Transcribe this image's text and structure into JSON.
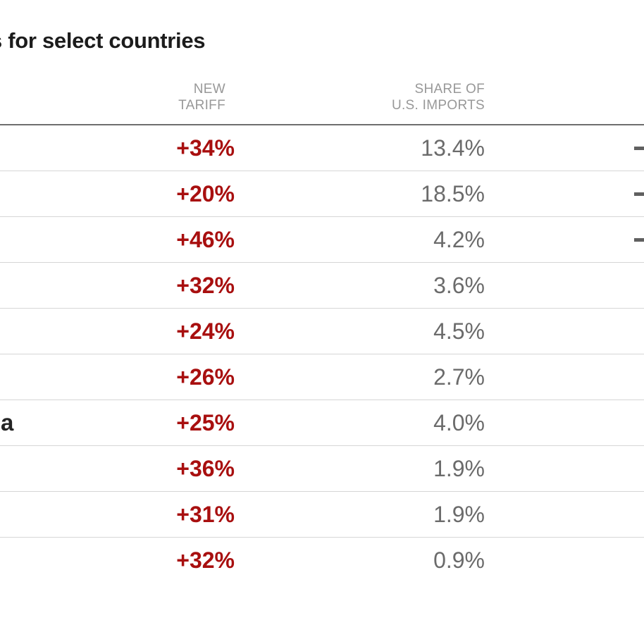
{
  "title": {
    "visible_text": "s for select countries"
  },
  "table": {
    "headers": {
      "tariff_line1": "NEW",
      "tariff_line2": "TARIFF",
      "share_line1": "SHARE OF",
      "share_line2": "U.S. IMPORTS"
    },
    "rows": [
      {
        "country_visible": "",
        "tariff": "+34%",
        "share": "13.4%",
        "trailing_dash": true
      },
      {
        "country_visible": "",
        "tariff": "+20%",
        "share": "18.5%",
        "trailing_dash": true
      },
      {
        "country_visible": "",
        "tariff": "+46%",
        "share": "4.2%",
        "trailing_dash": true
      },
      {
        "country_visible": "",
        "tariff": "+32%",
        "share": "3.6%",
        "trailing_dash": false
      },
      {
        "country_visible": "",
        "tariff": "+24%",
        "share": "4.5%",
        "trailing_dash": false
      },
      {
        "country_visible": "",
        "tariff": "+26%",
        "share": "2.7%",
        "trailing_dash": false
      },
      {
        "country_visible": "a",
        "tariff": "+25%",
        "share": "4.0%",
        "trailing_dash": false
      },
      {
        "country_visible": "",
        "tariff": "+36%",
        "share": "1.9%",
        "trailing_dash": false
      },
      {
        "country_visible": "",
        "tariff": "+31%",
        "share": "1.9%",
        "trailing_dash": false
      },
      {
        "country_visible": "",
        "tariff": "+32%",
        "share": "0.9%",
        "trailing_dash": false
      }
    ]
  },
  "chart_data": {
    "type": "table",
    "title": "s for select countries",
    "columns": [
      "NEW TARIFF",
      "SHARE OF U.S. IMPORTS"
    ],
    "new_tariff": [
      "+34%",
      "+20%",
      "+46%",
      "+32%",
      "+24%",
      "+26%",
      "+25%",
      "+36%",
      "+31%",
      "+32%"
    ],
    "share_of_us_imports": [
      "13.4%",
      "18.5%",
      "4.2%",
      "3.6%",
      "4.5%",
      "2.7%",
      "4.0%",
      "1.9%",
      "1.9%",
      "0.9%"
    ],
    "layout_hints": {
      "rows_cropped_left": "country name column cut off at left edge; only final letter 'a' of row 7 visible",
      "rows_cropped_right": "leading minus dashes of a further column visible at right edge on rows 1-3",
      "grid": "horizontal row separators only"
    }
  },
  "colors": {
    "accent_red": "#a80f0f",
    "value_gray": "#6b6b6b",
    "header_gray": "#989898",
    "title_dark": "#1c1c1c",
    "country_dark": "#242424",
    "row_separator": "#d6d6d6",
    "header_rule": "#6e6e6e",
    "dash_gray": "#606060",
    "page_bg": "#ffffff"
  }
}
